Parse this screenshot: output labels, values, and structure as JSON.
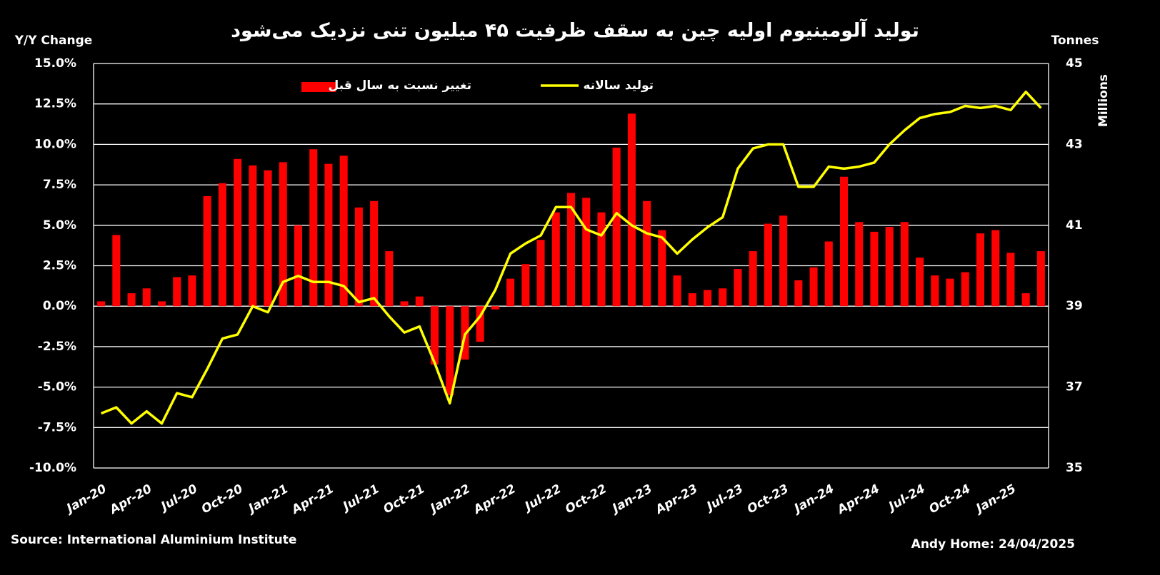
{
  "chart_data": {
    "type": "bar-line",
    "title": "تولید آلومینیوم اولیه چین به سقف ظرفیت ۴۵ میلیون تنی نزدیک می‌شود",
    "y_label": "Y/Y Change",
    "y2_label": "Tonnes",
    "y2_unit": "Millions",
    "source": "Source: International Aluminium Institute",
    "credit": "Andy Home: 24/04/2025",
    "categories": [
      "Jan-20",
      null,
      null,
      "Apr-20",
      null,
      null,
      "Jul-20",
      null,
      null,
      "Oct-20",
      null,
      null,
      "Jan-21",
      null,
      null,
      "Apr-21",
      null,
      null,
      "Jul-21",
      null,
      null,
      "Oct-21",
      null,
      null,
      "Jan-22",
      null,
      null,
      "Apr-22",
      null,
      null,
      "Jul-22",
      null,
      null,
      "Oct-22",
      null,
      null,
      "Jan-23",
      null,
      null,
      "Apr-23",
      null,
      null,
      "Jul-23",
      null,
      null,
      "Oct-23",
      null,
      null,
      "Jan-24",
      null,
      null,
      "Apr-24",
      null,
      null,
      "Jul-24",
      null,
      null,
      "Oct-24",
      null,
      null,
      "Jan-25",
      null,
      null
    ],
    "series": [
      {
        "name": "تغییر نسبت به سال قبل",
        "color": "#ff0000",
        "kind": "bar",
        "values": [
          0.3,
          4.4,
          0.8,
          1.1,
          0.3,
          1.8,
          1.9,
          6.8,
          7.6,
          9.1,
          8.7,
          8.4,
          8.9,
          5.0,
          9.7,
          8.8,
          9.3,
          6.1,
          6.5,
          3.4,
          0.3,
          0.6,
          -3.6,
          -5.5,
          -3.3,
          -2.2,
          -0.2,
          1.7,
          2.6,
          4.1,
          5.8,
          7.0,
          6.7,
          5.8,
          9.8,
          11.9,
          6.5,
          4.7,
          1.9,
          0.8,
          1.0,
          1.1,
          2.3,
          3.4,
          5.1,
          5.6,
          1.6,
          2.4,
          4.0,
          8.0,
          5.2,
          4.6,
          4.9,
          5.2,
          3.0,
          1.9,
          1.7,
          2.1,
          4.5,
          4.7,
          3.3,
          0.8,
          3.4
        ]
      },
      {
        "name": "تولید سالانه",
        "color": "#ffff00",
        "kind": "line",
        "axis": "y2",
        "values": [
          36.35,
          36.5,
          36.1,
          36.4,
          36.1,
          36.85,
          36.75,
          37.45,
          38.2,
          38.3,
          39.0,
          38.85,
          39.6,
          39.75,
          39.6,
          39.6,
          39.5,
          39.1,
          39.2,
          38.75,
          38.35,
          38.5,
          37.6,
          36.6,
          38.3,
          38.75,
          39.4,
          40.3,
          40.55,
          40.75,
          41.45,
          41.45,
          40.9,
          40.75,
          41.3,
          41.0,
          40.8,
          40.7,
          40.3,
          40.65,
          40.95,
          41.2,
          42.4,
          42.9,
          43.0,
          43.0,
          41.95,
          41.95,
          42.45,
          42.4,
          42.45,
          42.55,
          43.0,
          43.35,
          43.65,
          43.75,
          43.8,
          43.95,
          43.9,
          43.95,
          43.85,
          44.3,
          43.9
        ]
      }
    ],
    "ylim": [
      -10,
      15
    ],
    "yticks": [
      {
        "value": -10,
        "label": "-10.0%"
      },
      {
        "value": -7.5,
        "label": "-7.5%"
      },
      {
        "value": -5,
        "label": "-5.0%"
      },
      {
        "value": -2.5,
        "label": "-2.5%"
      },
      {
        "value": 0,
        "label": "0.0%"
      },
      {
        "value": 2.5,
        "label": "2.5%"
      },
      {
        "value": 5,
        "label": "5.0%"
      },
      {
        "value": 7.5,
        "label": "7.5%"
      },
      {
        "value": 10,
        "label": "10.0%"
      },
      {
        "value": 12.5,
        "label": "12.5%"
      },
      {
        "value": 15,
        "label": "15.0%"
      }
    ],
    "y2lim": [
      35,
      45
    ],
    "y2ticks": [
      35,
      37,
      39,
      41,
      43,
      45
    ],
    "grid": true
  }
}
